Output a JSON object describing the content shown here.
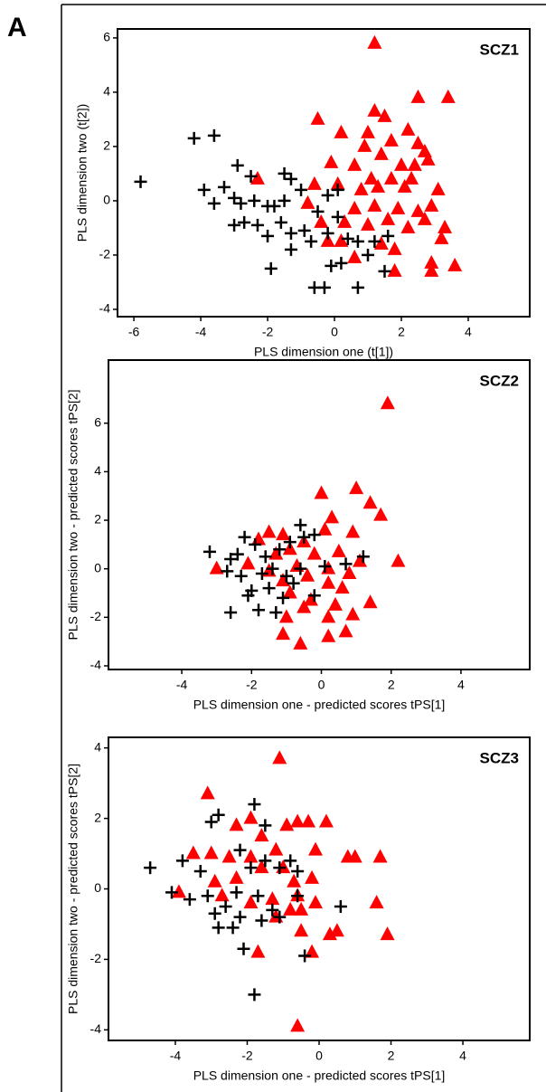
{
  "panel_label": "A",
  "chart_data": [
    {
      "type": "scatter",
      "title": "SCZ1",
      "x_label": "PLS dimension one (t[1])",
      "y_label": "PLS dimension two (t[2])",
      "xlim": [
        -6.49,
        5.84
      ],
      "ylim": [
        -4.27,
        6.33
      ],
      "xticks": [
        -6,
        -4,
        -2,
        0,
        2,
        4
      ],
      "yticks": [
        -4,
        -2,
        0,
        2,
        4,
        6
      ],
      "series": [
        {
          "marker": "triangle",
          "color": "#ff0000",
          "x": [
            1.2,
            -0.5,
            1.2,
            1.5,
            2.5,
            3.4,
            0.2,
            1,
            0.9,
            1.7,
            2.2,
            2.5,
            2.7,
            1.4,
            0.6,
            -0.1,
            2,
            2.4,
            2.8,
            1.1,
            1.7,
            2.1,
            -0.6,
            0.1,
            0.8,
            1.3,
            2.3,
            3.1,
            -0.8,
            0.6,
            1.2,
            1.9,
            2.5,
            2.9,
            -0.4,
            0.3,
            1,
            1.6,
            2.2,
            2.7,
            3.3,
            0.2,
            1.4,
            1.8,
            2.9,
            3.6,
            1.8,
            2.9,
            3.2,
            -2.3,
            -0.2,
            0.6
          ],
          "values": [
            5.8,
            3,
            3.3,
            3.1,
            3.8,
            3.8,
            2.5,
            2.5,
            2,
            2.2,
            2.6,
            2.1,
            1.8,
            1.7,
            1.3,
            1.4,
            1.3,
            1.3,
            1.5,
            0.8,
            0.8,
            0.5,
            0.6,
            0.6,
            0.4,
            0.5,
            0.8,
            0.4,
            -0.1,
            -0.3,
            -0.2,
            -0.3,
            -0.4,
            -0.2,
            -0.8,
            -0.8,
            -0.9,
            -0.7,
            -1,
            -0.7,
            -1,
            -1.5,
            -1.6,
            -1.8,
            -2.3,
            -2.4,
            -2.6,
            -2.6,
            -1.4,
            0.8,
            -1.5,
            -2.1
          ]
        },
        {
          "marker": "plus",
          "color": "#000000",
          "x": [
            -5.8,
            -4.2,
            -3.6,
            -2.9,
            -3.9,
            -3.3,
            -2.5,
            -1.5,
            -1.3,
            -3.6,
            -3,
            -2.8,
            -2.4,
            -2,
            -1.8,
            -1.5,
            -1,
            -0.2,
            0.1,
            -3,
            -2.7,
            -2.3,
            -1.6,
            -2,
            -1.3,
            -0.9,
            -0.7,
            -0.2,
            0.4,
            0.7,
            1.2,
            1.6,
            -1.3,
            -0.1,
            0.2,
            1,
            1.5,
            -1.9,
            -0.6,
            -0.3,
            0.7,
            0.1,
            -0.5
          ],
          "values": [
            0.7,
            2.3,
            2.4,
            1.3,
            0.4,
            0.5,
            0.9,
            1,
            0.8,
            -0.1,
            0.1,
            -0.1,
            0,
            -0.2,
            -0.2,
            0,
            0.4,
            0.2,
            0.4,
            -0.9,
            -0.8,
            -0.9,
            -0.8,
            -1.3,
            -1.2,
            -1.1,
            -1.5,
            -1.2,
            -1.4,
            -1.5,
            -1.5,
            -1.3,
            -1.8,
            -2.4,
            -2.3,
            -2,
            -2.6,
            -2.5,
            -3.2,
            -3.2,
            -3.2,
            -0.6,
            -0.4
          ]
        }
      ]
    },
    {
      "type": "scatter",
      "title": "SCZ2",
      "x_label": "PLS dimension one - predicted scores tPS[1]",
      "y_label": "PLS dimension two - predicted scores tPS[2]",
      "xlim": [
        -6.1,
        5.97
      ],
      "ylim": [
        -4.15,
        8.6
      ],
      "xticks": [
        -4,
        -2,
        0,
        2,
        4
      ],
      "yticks": [
        -4,
        -2,
        0,
        2,
        4,
        6
      ],
      "series": [
        {
          "marker": "triangle",
          "color": "#ff0000",
          "x": [
            1.9,
            0,
            1,
            1.4,
            1.7,
            0.3,
            2.2,
            1.4,
            -1.5,
            -1.8,
            -1.1,
            -0.5,
            0.1,
            0.9,
            -1.3,
            -0.9,
            -0.2,
            0.5,
            -3,
            -2.1,
            -1.5,
            -0.7,
            0.2,
            0.8,
            1.1,
            -1.1,
            -0.4,
            0.2,
            0.6,
            -0.9,
            -0.3,
            0.4,
            -1,
            -0.5,
            0.2,
            -1.1,
            -0.6,
            0.2,
            0.7,
            0.9
          ],
          "values": [
            6.8,
            3.1,
            3.3,
            2.7,
            2.2,
            2.1,
            0.3,
            -1.4,
            1.5,
            1.2,
            1.4,
            1.1,
            1.6,
            1.5,
            0.6,
            0.8,
            0.6,
            0.7,
            0,
            0.2,
            -0.1,
            0.1,
            0,
            -0.2,
            0.3,
            -0.5,
            -0.3,
            -0.6,
            -0.8,
            -1,
            -1.3,
            -1.5,
            -2,
            -1.6,
            -2,
            -2.7,
            -3.1,
            -2.8,
            -2.6,
            -1.9
          ]
        },
        {
          "marker": "plus",
          "color": "#000000",
          "x": [
            -3.2,
            -2.6,
            -2.4,
            -2.2,
            -1.9,
            -1.6,
            -1.2,
            -0.9,
            -0.5,
            -0.6,
            -0.2,
            -2.7,
            -2.3,
            -1.7,
            -1.4,
            -1,
            -0.6,
            0.1,
            0.7,
            1.2,
            -2,
            -2.1,
            -1.5,
            -0.8,
            -2.6,
            -1.8,
            -1.3,
            -1.1,
            -0.2
          ],
          "values": [
            0.7,
            0.4,
            0.6,
            1.3,
            1,
            0.5,
            0.8,
            1.1,
            1.3,
            1.8,
            1.4,
            -0.1,
            -0.3,
            -0.2,
            0,
            -0.3,
            0,
            0.1,
            0.2,
            0.5,
            -0.9,
            -1.1,
            -0.8,
            -0.6,
            -1.8,
            -1.7,
            -1.8,
            -1.2,
            -1.1
          ]
        }
      ]
    },
    {
      "type": "scatter",
      "title": "SCZ3",
      "x_label": "PLS dimension one - predicted scores tPS[1]",
      "y_label": "PLS dimension two - predicted scores tPS[2]",
      "xlim": [
        -5.86,
        5.86
      ],
      "ylim": [
        -4.3,
        4.3
      ],
      "xticks": [
        -4,
        -2,
        0,
        2,
        4
      ],
      "yticks": [
        -4,
        -2,
        0,
        2,
        4
      ],
      "series": [
        {
          "marker": "triangle",
          "color": "#ff0000",
          "x": [
            -1.1,
            -3.1,
            -2.3,
            -1.9,
            -1.6,
            -0.9,
            -0.6,
            -0.3,
            0.2,
            -3.5,
            -3,
            -2.5,
            -1.9,
            -1.2,
            -0.1,
            0.8,
            1,
            1.7,
            -3.9,
            -2.9,
            -2.3,
            -1.6,
            -1,
            -0.7,
            -0.6,
            -0.2,
            -2.7,
            -1.9,
            -1.3,
            -0.8,
            -0.5,
            -0.1,
            1.6,
            -1.7,
            -1.2,
            -0.5,
            -0.2,
            0.3,
            0.5,
            1.9,
            -0.6
          ],
          "values": [
            3.7,
            2.7,
            1.8,
            2,
            1.5,
            1.8,
            1.9,
            1.9,
            1.9,
            1,
            1,
            0.9,
            0.9,
            1.1,
            1.1,
            0.9,
            0.9,
            0.9,
            -0.1,
            0.2,
            0.3,
            0.6,
            0.6,
            0.2,
            -0.2,
            0.3,
            -0.2,
            -0.4,
            -0.3,
            -0.6,
            -0.6,
            -0.4,
            -0.4,
            -1.8,
            -0.8,
            -1.2,
            -1.8,
            -1.3,
            -1.2,
            -1.3,
            -3.9
          ]
        },
        {
          "marker": "plus",
          "color": "#000000",
          "x": [
            -4.7,
            -4.1,
            -3.8,
            -3.3,
            -3,
            -2.8,
            -1.8,
            -1.5,
            -2.2,
            -1.9,
            -1.5,
            -1.1,
            -0.8,
            -0.6,
            -3.6,
            -3.1,
            -2.3,
            -1.7,
            -1.3,
            -0.6,
            0.6,
            -2.9,
            -2.2,
            -2.6,
            -1.6,
            -1.1,
            -2.8,
            -2.4,
            -2.1,
            -1.8,
            -0.4
          ],
          "values": [
            0.6,
            -0.1,
            0.8,
            0.5,
            1.9,
            2.1,
            2.4,
            1.8,
            1.1,
            0.6,
            0.8,
            0.6,
            0.8,
            0.5,
            -0.3,
            -0.2,
            -0.1,
            -0.2,
            -0.6,
            -0.2,
            -0.5,
            -0.7,
            -0.8,
            -0.5,
            -0.9,
            -0.8,
            -1.1,
            -1.1,
            -1.7,
            -3,
            -1.9
          ]
        }
      ]
    }
  ]
}
